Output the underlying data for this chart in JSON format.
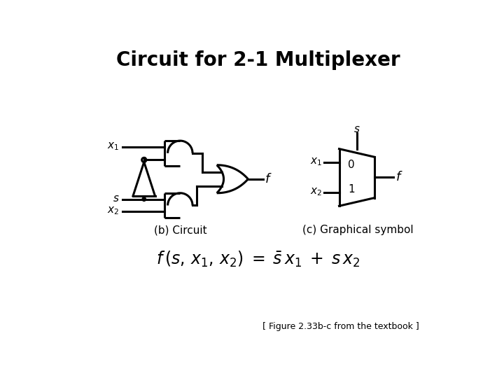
{
  "title": "Circuit for 2-1 Multiplexer",
  "title_fontsize": 20,
  "bg_color": "#ffffff",
  "line_color": "#000000",
  "line_width": 2.2,
  "label_b_circuit": "(b) Circuit",
  "label_c_symbol": "(c) Graphical symbol",
  "formula_label": "[ Figure 2.33b-c from the textbook ]",
  "label_fontsize": 11,
  "footnote_fontsize": 9
}
